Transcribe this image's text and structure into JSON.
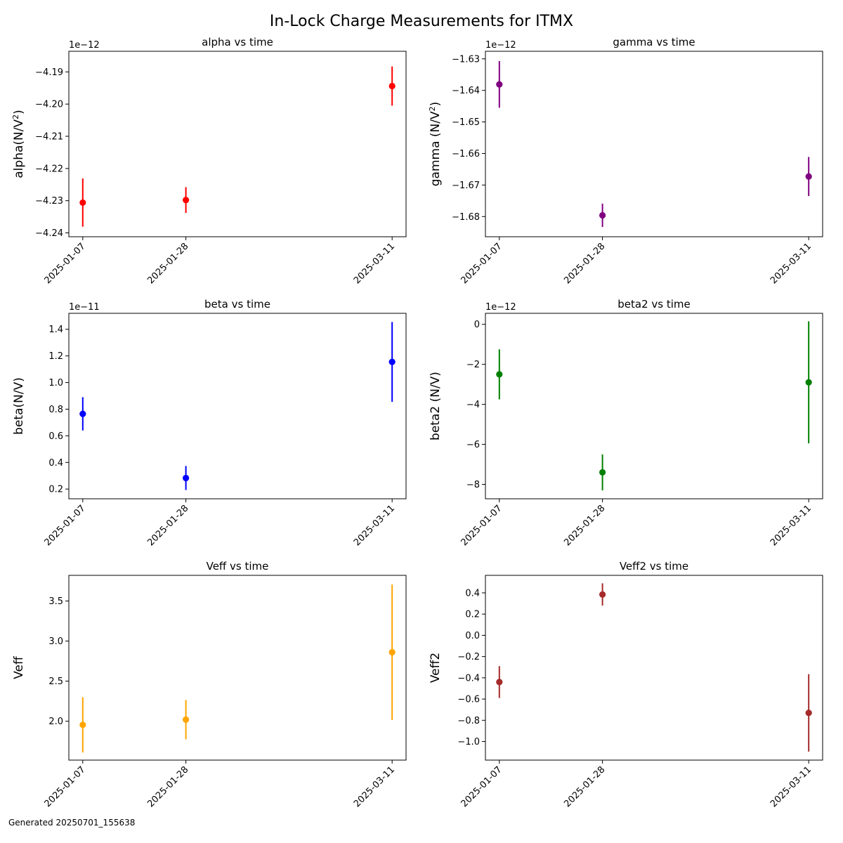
{
  "figure": {
    "title": "In-Lock Charge Measurements for ITMX",
    "footer": "Generated 20250701_155638"
  },
  "chart_data": [
    {
      "type": "scatter",
      "title": "alpha vs time",
      "xlabel": "",
      "ylabel_main": "alpha(N/V",
      "ylabel_sup": "2",
      "ylabel_tail": ")",
      "multiplier": "1e−12",
      "color": "#ff0000",
      "x": [
        "2025-01-07",
        "2025-01-28",
        "2025-03-11"
      ],
      "y": [
        -4.2306,
        -4.2298,
        -4.1944
      ],
      "yerr": [
        0.0075,
        0.004,
        0.0061
      ],
      "ylim": [
        -4.2412,
        -4.1836
      ],
      "yticks": [
        -4.24,
        -4.23,
        -4.22,
        -4.21,
        -4.2,
        -4.19
      ],
      "ytick_labels": [
        "−4.24",
        "−4.23",
        "−4.22",
        "−4.21",
        "−4.20",
        "−4.19"
      ]
    },
    {
      "type": "scatter",
      "title": "gamma vs time",
      "xlabel": "",
      "ylabel_main": "gamma (N/V",
      "ylabel_sup": "2",
      "ylabel_tail": ")",
      "multiplier": "1e−12",
      "color": "#800080",
      "x": [
        "2025-01-07",
        "2025-01-28",
        "2025-03-11"
      ],
      "y": [
        -1.6381,
        -1.6796,
        -1.6673
      ],
      "yerr": [
        0.0074,
        0.0037,
        0.0062
      ],
      "ylim": [
        -1.6864,
        -1.6276
      ],
      "yticks": [
        -1.68,
        -1.67,
        -1.66,
        -1.65,
        -1.64,
        -1.63
      ],
      "ytick_labels": [
        "−1.68",
        "−1.67",
        "−1.66",
        "−1.65",
        "−1.64",
        "−1.63"
      ]
    },
    {
      "type": "scatter",
      "title": "beta vs time",
      "xlabel": "",
      "ylabel_main": "beta(N/V)",
      "ylabel_sup": "",
      "ylabel_tail": "",
      "multiplier": "1e−11",
      "color": "#0000ff",
      "x": [
        "2025-01-07",
        "2025-01-28",
        "2025-03-11"
      ],
      "y": [
        0.765,
        0.283,
        1.155
      ],
      "yerr": [
        0.125,
        0.09,
        0.3
      ],
      "ylim": [
        0.127,
        1.52
      ],
      "yticks": [
        0.2,
        0.4,
        0.6,
        0.8,
        1.0,
        1.2,
        1.4
      ],
      "ytick_labels": [
        "0.2",
        "0.4",
        "0.6",
        "0.8",
        "1.0",
        "1.2",
        "1.4"
      ]
    },
    {
      "type": "scatter",
      "title": "beta2 vs time",
      "xlabel": "",
      "ylabel_main": "beta2 (N/V)",
      "ylabel_sup": "",
      "ylabel_tail": "",
      "multiplier": "1e−12",
      "color": "#008000",
      "x": [
        "2025-01-07",
        "2025-01-28",
        "2025-03-11"
      ],
      "y": [
        -2.5,
        -7.4,
        -2.9
      ],
      "yerr": [
        1.25,
        0.9,
        3.05
      ],
      "ylim": [
        -8.72,
        0.55
      ],
      "yticks": [
        -8,
        -6,
        -4,
        -2,
        0
      ],
      "ytick_labels": [
        "−8",
        "−6",
        "−4",
        "−2",
        "0"
      ]
    },
    {
      "type": "scatter",
      "title": "Veff vs time",
      "xlabel": "",
      "ylabel_main": "Veff",
      "ylabel_sup": "",
      "ylabel_tail": "",
      "multiplier": "",
      "color": "#ffa500",
      "x": [
        "2025-01-07",
        "2025-01-28",
        "2025-03-11"
      ],
      "y": [
        1.955,
        2.02,
        2.86
      ],
      "yerr": [
        0.345,
        0.245,
        0.845
      ],
      "ylim": [
        1.515,
        3.82
      ],
      "yticks": [
        2.0,
        2.5,
        3.0,
        3.5
      ],
      "ytick_labels": [
        "2.0",
        "2.5",
        "3.0",
        "3.5"
      ]
    },
    {
      "type": "scatter",
      "title": "Veff2 vs time",
      "xlabel": "",
      "ylabel_main": "Veff2",
      "ylabel_sup": "",
      "ylabel_tail": "",
      "multiplier": "",
      "color": "#a52a2a",
      "x": [
        "2025-01-07",
        "2025-01-28",
        "2025-03-11"
      ],
      "y": [
        -0.44,
        0.385,
        -0.73
      ],
      "yerr": [
        0.15,
        0.105,
        0.365
      ],
      "ylim": [
        -1.175,
        0.565
      ],
      "yticks": [
        -1.0,
        -0.8,
        -0.6,
        -0.4,
        -0.2,
        0.0,
        0.2,
        0.4
      ],
      "ytick_labels": [
        "−1.0",
        "−0.8",
        "−0.6",
        "−0.4",
        "−0.2",
        "0.0",
        "0.2",
        "0.4"
      ]
    }
  ]
}
